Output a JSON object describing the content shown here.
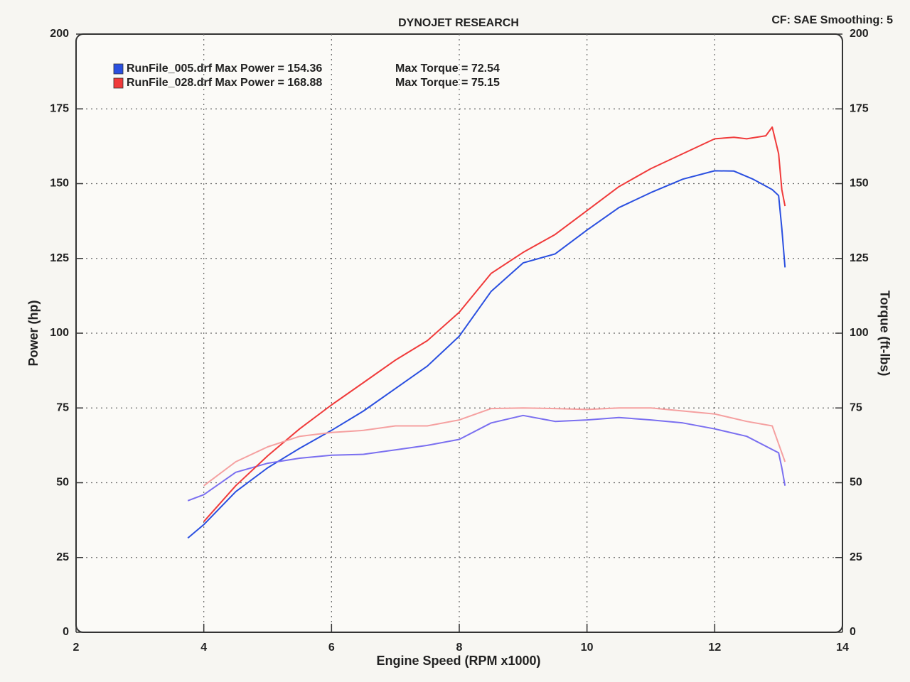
{
  "chart_data": {
    "type": "line",
    "title": "DYNOJET RESEARCH",
    "subtitle": "CF: SAE  Smoothing: 5",
    "x_label": "Engine Speed (RPM x1000)",
    "y_label": "Power (hp)",
    "y2_label": "Torque (ft-lbs)",
    "xlim": [
      2,
      14
    ],
    "xticks": [
      2,
      4,
      6,
      8,
      10,
      12,
      14
    ],
    "ylim": [
      0,
      200
    ],
    "yticks": [
      0,
      25,
      50,
      75,
      100,
      125,
      150,
      175,
      200
    ],
    "y2lim": [
      0,
      200
    ],
    "y2ticks": [
      0,
      25,
      50,
      75,
      100,
      125,
      150,
      175,
      200
    ],
    "grid": true,
    "legend": "top-left",
    "series": [
      {
        "name": "RunFile_005.drf Max Power = 154.36",
        "color": "#2a4fe0",
        "axis": "y",
        "x": [
          3.75,
          4.0,
          4.5,
          5.0,
          5.5,
          6.0,
          6.5,
          7.0,
          7.5,
          8.0,
          8.5,
          9.0,
          9.5,
          10.0,
          10.5,
          11.0,
          11.5,
          12.0,
          12.3,
          12.6,
          12.9,
          13.0,
          13.05,
          13.1
        ],
        "values": [
          31.5,
          36,
          47,
          55,
          61.5,
          67.5,
          74,
          81.5,
          89,
          99,
          114,
          123.5,
          126.5,
          134.5,
          142,
          147,
          151.5,
          154.3,
          154.2,
          151.5,
          148,
          146,
          135,
          122
        ]
      },
      {
        "name": "Max Torque = 72.54",
        "color": "#7a6ff0",
        "axis": "y2",
        "x": [
          3.75,
          4.0,
          4.5,
          5.0,
          5.5,
          6.0,
          6.5,
          7.0,
          7.5,
          8.0,
          8.5,
          9.0,
          9.5,
          10.0,
          10.5,
          11.0,
          11.5,
          12.0,
          12.5,
          13.0,
          13.05,
          13.1
        ],
        "values": [
          44,
          46,
          53.5,
          56.5,
          58.2,
          59.2,
          59.5,
          61,
          62.5,
          64.5,
          70,
          72.5,
          70.5,
          71,
          71.8,
          71,
          70,
          68,
          65.5,
          60,
          55,
          49
        ]
      },
      {
        "name": "RunFile_028.drf Max Power = 168.88",
        "color": "#f03a3a",
        "axis": "y",
        "x": [
          4.0,
          4.5,
          5.0,
          5.5,
          6.0,
          6.5,
          7.0,
          7.5,
          8.0,
          8.5,
          9.0,
          9.5,
          10.0,
          10.5,
          11.0,
          11.5,
          12.0,
          12.3,
          12.5,
          12.8,
          12.9,
          13.0,
          13.05,
          13.1
        ],
        "values": [
          37,
          49,
          59,
          68,
          76,
          83.5,
          91,
          97.5,
          107,
          120,
          127,
          133,
          141,
          149,
          155,
          160,
          165,
          165.5,
          165,
          166,
          168.9,
          160,
          148,
          142.5
        ]
      },
      {
        "name": "Max Torque = 75.15",
        "color": "#f5a0a0",
        "axis": "y2",
        "x": [
          4.0,
          4.5,
          5.0,
          5.5,
          6.0,
          6.5,
          7.0,
          7.5,
          8.0,
          8.5,
          9.0,
          9.5,
          10.0,
          10.5,
          11.0,
          11.5,
          12.0,
          12.5,
          12.9,
          13.0,
          13.1
        ],
        "values": [
          49,
          57,
          62,
          65.5,
          66.8,
          67.5,
          69,
          69,
          71,
          74.8,
          75,
          74.8,
          74.5,
          75,
          75,
          74,
          73,
          70.5,
          69,
          63,
          57
        ]
      }
    ]
  }
}
